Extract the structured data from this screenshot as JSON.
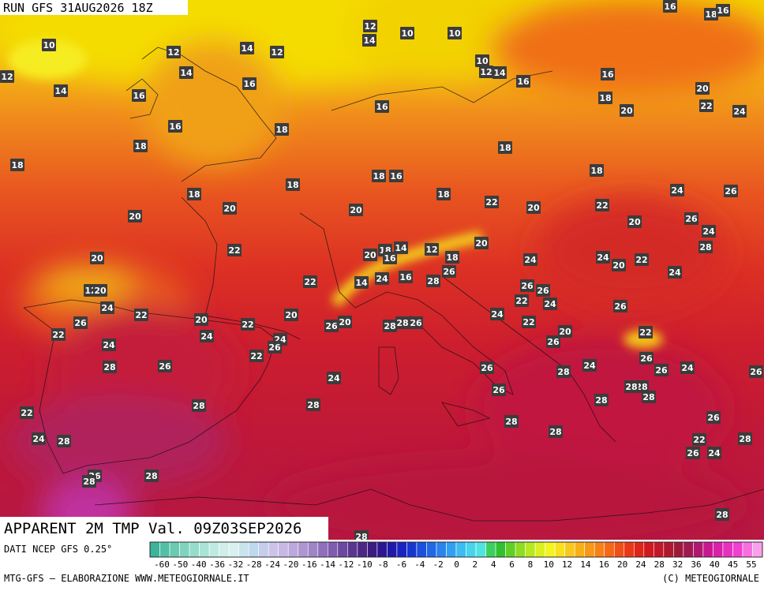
{
  "header": {
    "run": "RUN GFS 31AUG2026 18Z"
  },
  "title": "APPARENT 2M TMP Val. 09Z03SEP2026",
  "source": "DATI NCEP GFS 0.25°",
  "footer_left": "MTG-GFS — ELABORAZIONE WWW.METEOGIORNALE.IT",
  "footer_right": "(C) METEOGIORNALE",
  "legend": {
    "ticks": [
      "-60",
      "-50",
      "-40",
      "-36",
      "-32",
      "-28",
      "-24",
      "-20",
      "-16",
      "-14",
      "-12",
      "-10",
      "-8",
      "-6",
      "-4",
      "-2",
      "0",
      "2",
      "4",
      "6",
      "8",
      "10",
      "12",
      "14",
      "16",
      "20",
      "24",
      "28",
      "32",
      "36",
      "40",
      "45",
      "55"
    ],
    "colors": [
      "#3cb39a",
      "#52c0a6",
      "#6acab2",
      "#80d4bf",
      "#96dccb",
      "#aae4d6",
      "#bdebe1",
      "#cfefea",
      "#d8f0f0",
      "#c8e4ec",
      "#c0d8ec",
      "#c4cdea",
      "#ccc4e8",
      "#c8b8e4",
      "#bca8dc",
      "#ae96d2",
      "#a084c8",
      "#9070bc",
      "#7e5cae",
      "#6c48a0",
      "#5a3690",
      "#4a2884",
      "#3c1c80",
      "#2e1690",
      "#2018a8",
      "#1a22c0",
      "#1636d0",
      "#1a50dc",
      "#2068e4",
      "#2a84ec",
      "#32a0f0",
      "#3cbcf0",
      "#48d4ec",
      "#50e4e0",
      "#3cd060",
      "#30c030",
      "#60d028",
      "#90dc20",
      "#b8e820",
      "#dcf020",
      "#f4f420",
      "#f8e020",
      "#f8c820",
      "#f8b018",
      "#f89818",
      "#f88018",
      "#f46818",
      "#f05018",
      "#e83818",
      "#e02418",
      "#d01820",
      "#c01828",
      "#b01830",
      "#a01838",
      "#a01850",
      "#b01870",
      "#c81890",
      "#d820a8",
      "#e830c0",
      "#f040d0",
      "#f870e0",
      "#f8a0ec"
    ]
  },
  "map_labels": [
    "10",
    "12",
    "12",
    "14",
    "12",
    "14",
    "16",
    "14",
    "16",
    "16",
    "18",
    "18",
    "18",
    "12",
    "14",
    "10",
    "10",
    "10",
    "12",
    "14",
    "16",
    "16",
    "16",
    "18",
    "16",
    "16",
    "18",
    "20",
    "22",
    "24",
    "20",
    "18",
    "18",
    "18",
    "16",
    "18",
    "18",
    "18",
    "22",
    "20",
    "22",
    "24",
    "26",
    "20",
    "20",
    "20",
    "20",
    "26",
    "24",
    "28",
    "22",
    "20",
    "20",
    "18",
    "14",
    "16",
    "12",
    "18",
    "20",
    "24",
    "24",
    "20",
    "22",
    "24",
    "22",
    "14",
    "24",
    "16",
    "28",
    "26",
    "26",
    "22",
    "26",
    "24",
    "12",
    "20",
    "24",
    "22",
    "26",
    "22",
    "20",
    "22",
    "20",
    "26",
    "20",
    "28",
    "28",
    "26",
    "24",
    "22",
    "26",
    "20",
    "26",
    "22",
    "24",
    "24",
    "26",
    "22",
    "24",
    "28",
    "26",
    "26",
    "28",
    "26",
    "24",
    "26",
    "26",
    "28",
    "24",
    "24",
    "26",
    "28",
    "28",
    "28",
    "28",
    "28",
    "22",
    "26",
    "28",
    "28",
    "24",
    "28",
    "22",
    "28",
    "26",
    "24",
    "26",
    "28",
    "28",
    "28",
    "28"
  ]
}
